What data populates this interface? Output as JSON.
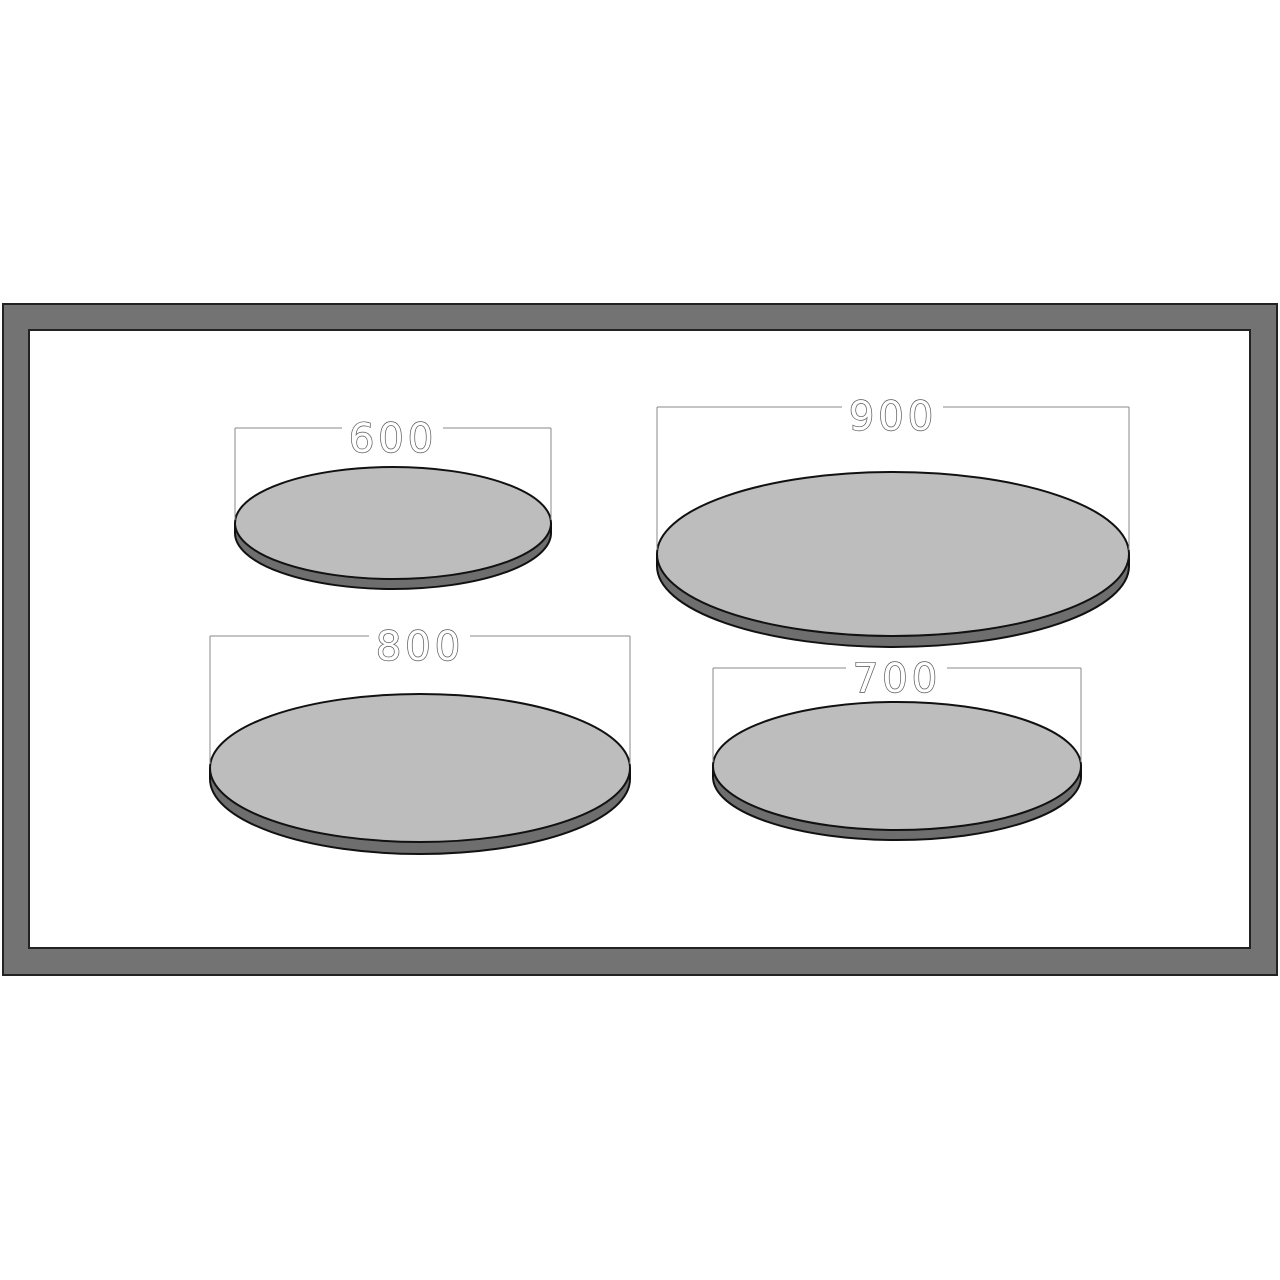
{
  "colors": {
    "frame": "#737373",
    "frame_border": "#222222",
    "background": "#ffffff",
    "disc_top": "#bdbdbd",
    "disc_edge": "#6e6e6e",
    "outline": "#111111",
    "dimension_line": "#8a8a8a"
  },
  "discs": [
    {
      "id": "disc-600",
      "label": "600"
    },
    {
      "id": "disc-900",
      "label": "900"
    },
    {
      "id": "disc-800",
      "label": "800"
    },
    {
      "id": "disc-700",
      "label": "700"
    }
  ]
}
